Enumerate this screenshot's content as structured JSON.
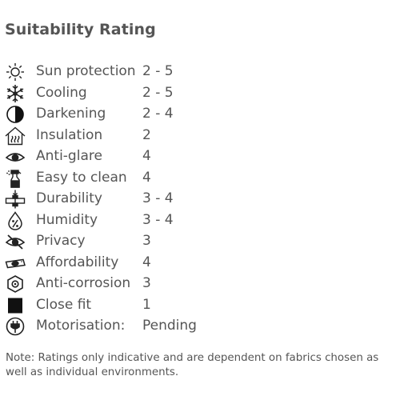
{
  "title": "Suitability Rating",
  "rows": [
    {
      "icon": "sun-icon",
      "label": "Sun protection",
      "value": "2 - 5"
    },
    {
      "icon": "snowflake-icon",
      "label": "Cooling",
      "value": "2 - 5"
    },
    {
      "icon": "half-circle-icon",
      "label": "Darkening",
      "value": "2 - 4"
    },
    {
      "icon": "house-heat-icon",
      "label": "Insulation",
      "value": "2"
    },
    {
      "icon": "eye-icon",
      "label": "Anti-glare",
      "value": "4"
    },
    {
      "icon": "spray-bottle-icon",
      "label": "Easy to clean",
      "value": "4"
    },
    {
      "icon": "weight-press-icon",
      "label": "Durability",
      "value": "3 - 4"
    },
    {
      "icon": "humidity-drop-icon",
      "label": "Humidity",
      "value": "3 - 4"
    },
    {
      "icon": "eye-crossed-icon",
      "label": "Privacy",
      "value": "3"
    },
    {
      "icon": "money-note-icon",
      "label": "Affordability",
      "value": "4"
    },
    {
      "icon": "hexagon-nut-icon",
      "label": "Anti-corrosion",
      "value": "3"
    },
    {
      "icon": "black-square-icon",
      "label": "Close fit",
      "value": "1"
    },
    {
      "icon": "power-plug-icon",
      "label": "Motorisation:",
      "value": "Pending"
    }
  ],
  "note": "Note: Ratings only indicative and are dependent on fabrics chosen as well as individual environments."
}
